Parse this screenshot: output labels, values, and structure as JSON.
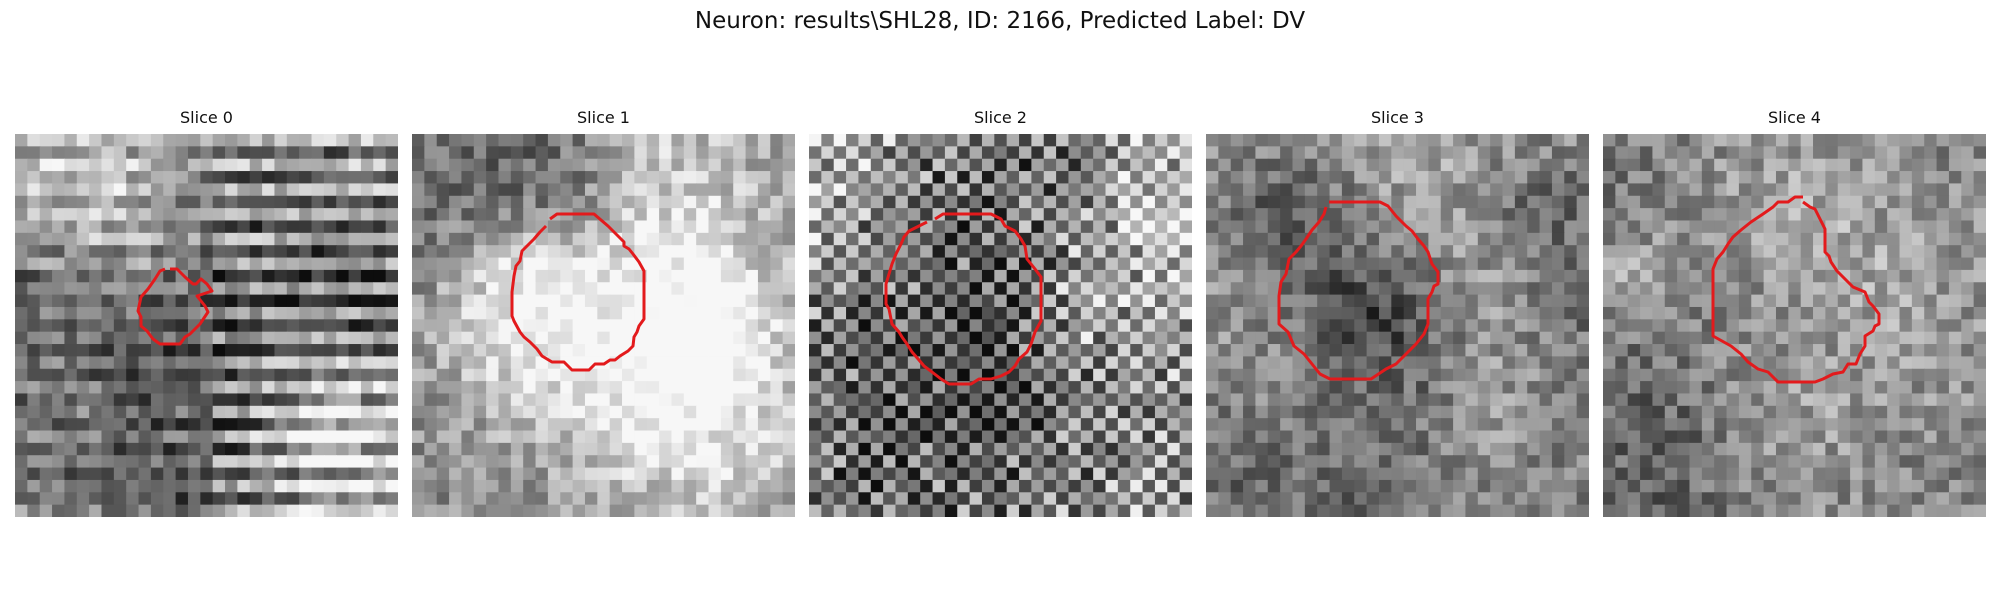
{
  "figure": {
    "title": "Neuron: results\\SHL28, ID: 2166, Predicted Label: DV",
    "contour_color": "#e31a1c",
    "colormap": "gray"
  },
  "panels": [
    {
      "title": "Slice 0",
      "texture": "striped"
    },
    {
      "title": "Slice 1",
      "texture": "smooth"
    },
    {
      "title": "Slice 2",
      "texture": "checker"
    },
    {
      "title": "Slice 3",
      "texture": "smooth"
    },
    {
      "title": "Slice 4",
      "texture": "smooth"
    }
  ]
}
